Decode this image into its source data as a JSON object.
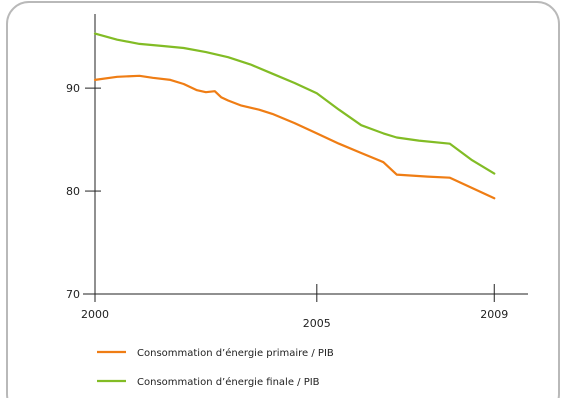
{
  "chart_data": {
    "type": "line",
    "title": "",
    "xlabel": "",
    "ylabel": "",
    "xlim": [
      2000,
      2009.4
    ],
    "ylim": [
      70,
      97.2
    ],
    "grid": false,
    "legend_position": "bottom-left",
    "x_ticks": [
      {
        "value": 2000,
        "label": "2000"
      },
      {
        "value": 2005,
        "label": "2005"
      },
      {
        "value": 2009,
        "label": "2009"
      }
    ],
    "y_ticks": [
      {
        "value": 90,
        "label": "90"
      },
      {
        "value": 80,
        "label": "80"
      },
      {
        "value": 70,
        "label": "70"
      }
    ],
    "series": [
      {
        "name": "Consommation d’énergie primaire / PIB",
        "color": "#ef7d14",
        "x": [
          2000,
          2000.5,
          2001,
          2001.3,
          2001.7,
          2002,
          2002.3,
          2002.5,
          2002.7,
          2002.85,
          2003,
          2003.3,
          2003.7,
          2004,
          2004.5,
          2005,
          2005.5,
          2006,
          2006.5,
          2006.8,
          2007.5,
          2008,
          2008.5,
          2009
        ],
        "values": [
          90.8,
          91.1,
          91.2,
          91.0,
          90.8,
          90.4,
          89.8,
          89.6,
          89.7,
          89.1,
          88.8,
          88.3,
          87.9,
          87.5,
          86.6,
          85.6,
          84.6,
          83.7,
          82.8,
          81.6,
          81.4,
          81.3,
          80.3,
          79.3
        ]
      },
      {
        "name": "Consommation d’énergie finale / PIB",
        "color": "#82bc25",
        "x": [
          2000,
          2000.5,
          2001,
          2001.5,
          2002,
          2002.5,
          2003,
          2003.5,
          2004,
          2004.5,
          2005,
          2005.5,
          2006,
          2006.5,
          2006.8,
          2007.3,
          2008,
          2008.5,
          2009
        ],
        "values": [
          95.3,
          94.7,
          94.3,
          94.1,
          93.9,
          93.5,
          93.0,
          92.3,
          91.4,
          90.5,
          89.5,
          87.9,
          86.4,
          85.6,
          85.2,
          84.9,
          84.6,
          83.0,
          81.7
        ]
      }
    ]
  }
}
